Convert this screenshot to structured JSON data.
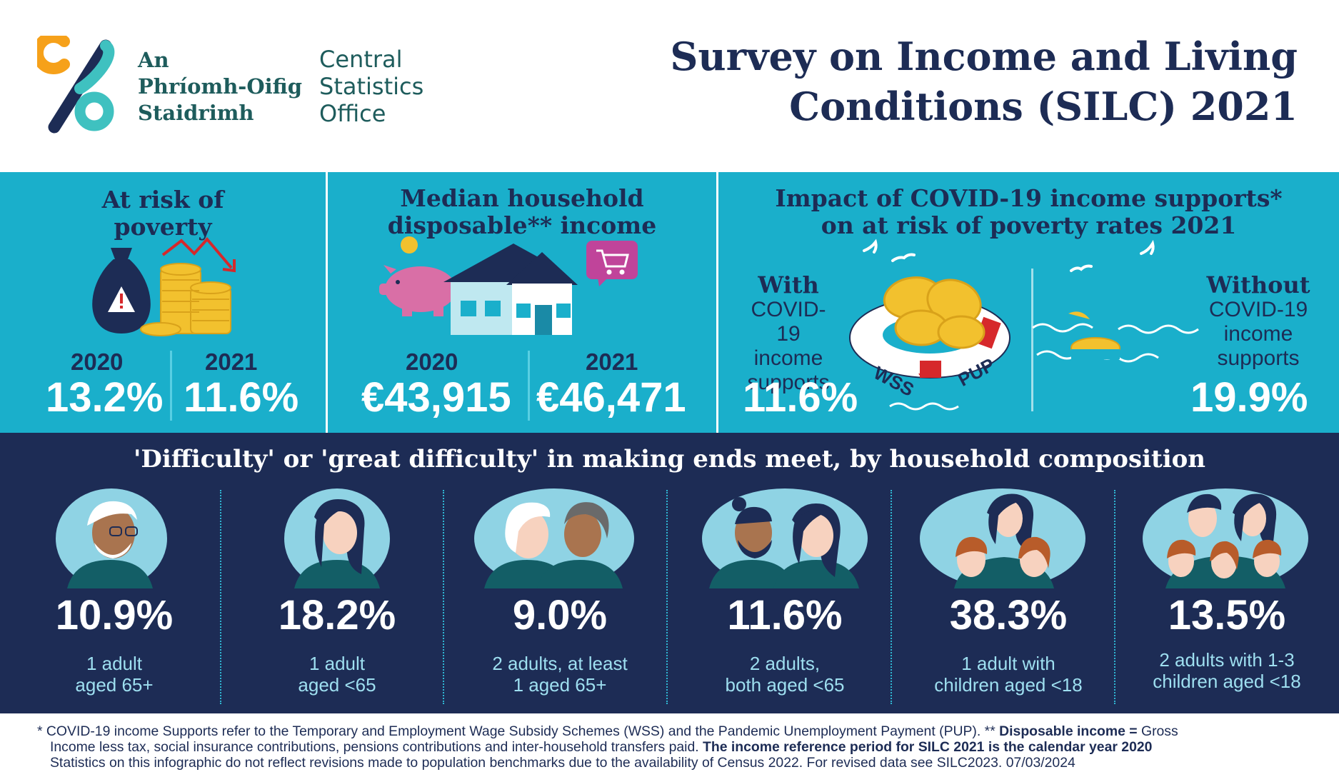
{
  "header": {
    "logo_irish_lines": [
      "An",
      "Phríomh-Oifig",
      "Staidrimh"
    ],
    "logo_english_lines": [
      "Central",
      "Statistics",
      "Office"
    ],
    "title_lines": [
      "Survey on Income and Living",
      "Conditions (SILC) 2021"
    ]
  },
  "poverty": {
    "title_lines": [
      "At risk of",
      "poverty"
    ],
    "year_a": "2020",
    "value_a": "13.2%",
    "year_b": "2021",
    "value_b": "11.6%"
  },
  "income": {
    "title_lines": [
      "Median household",
      "disposable** income"
    ],
    "year_a": "2020",
    "value_a": "€43,915",
    "year_b": "2021",
    "value_b": "€46,471"
  },
  "covid": {
    "title_lines": [
      "Impact of COVID-19 income supports*",
      "on at risk of poverty rates 2021"
    ],
    "with_bold": "With",
    "with_lines": [
      "COVID-19",
      "income",
      "supports"
    ],
    "with_value": "11.6%",
    "without_bold": "Without",
    "without_lines": [
      "COVID-19",
      "income",
      "supports"
    ],
    "without_value": "19.9%",
    "ring_labels": [
      "WSS",
      "PUP"
    ]
  },
  "households": {
    "title": "'Difficulty' or 'great difficulty' in making ends meet, by household composition",
    "items": [
      {
        "pct": "10.9%",
        "desc": [
          "1 adult",
          "aged 65+"
        ]
      },
      {
        "pct": "18.2%",
        "desc": [
          "1 adult",
          "aged <65"
        ]
      },
      {
        "pct": "9.0%",
        "desc": [
          "2 adults, at least",
          "1 aged 65+"
        ]
      },
      {
        "pct": "11.6%",
        "desc": [
          "2 adults,",
          "both aged <65"
        ]
      },
      {
        "pct": "38.3%",
        "desc": [
          "1 adult with",
          "children aged <18"
        ]
      },
      {
        "pct": "13.5%",
        "desc": [
          "2 adults with 1-3",
          "children aged <18"
        ]
      }
    ]
  },
  "footer": {
    "line1_a": "* COVID-19 income Supports refer to the Temporary and Employment Wage Subsidy Schemes (WSS) and the Pandemic Unemployment Payment (PUP). ** ",
    "line1_bold": "Disposable income =",
    "line1_b": " Gross",
    "line2_a": "Income less tax, social insurance contributions, pensions contributions and inter-household transfers paid. ",
    "line2_bold": "The income reference period for SILC 2021 is the calendar year 2020",
    "line3": "Statistics on this infographic do not reflect revisions made to population benchmarks due to the availability of Census 2022. For revised data see SILC2023. 07/03/2024"
  },
  "colors": {
    "teal": "#1aafcb",
    "navy": "#1d2c55",
    "logo_orange": "#f6a11a",
    "logo_teal": "#3fc1c0",
    "gold": "#f2c12e",
    "red": "#d6282b"
  },
  "icons": [
    "cso-logo-icon",
    "money-bag-icon",
    "coin-stack-icon",
    "trend-down-arrow-icon",
    "piggy-bank-icon",
    "house-icon",
    "shopping-cart-icon",
    "life-ring-icon",
    "seagull-icon",
    "person-avatar-icon"
  ]
}
